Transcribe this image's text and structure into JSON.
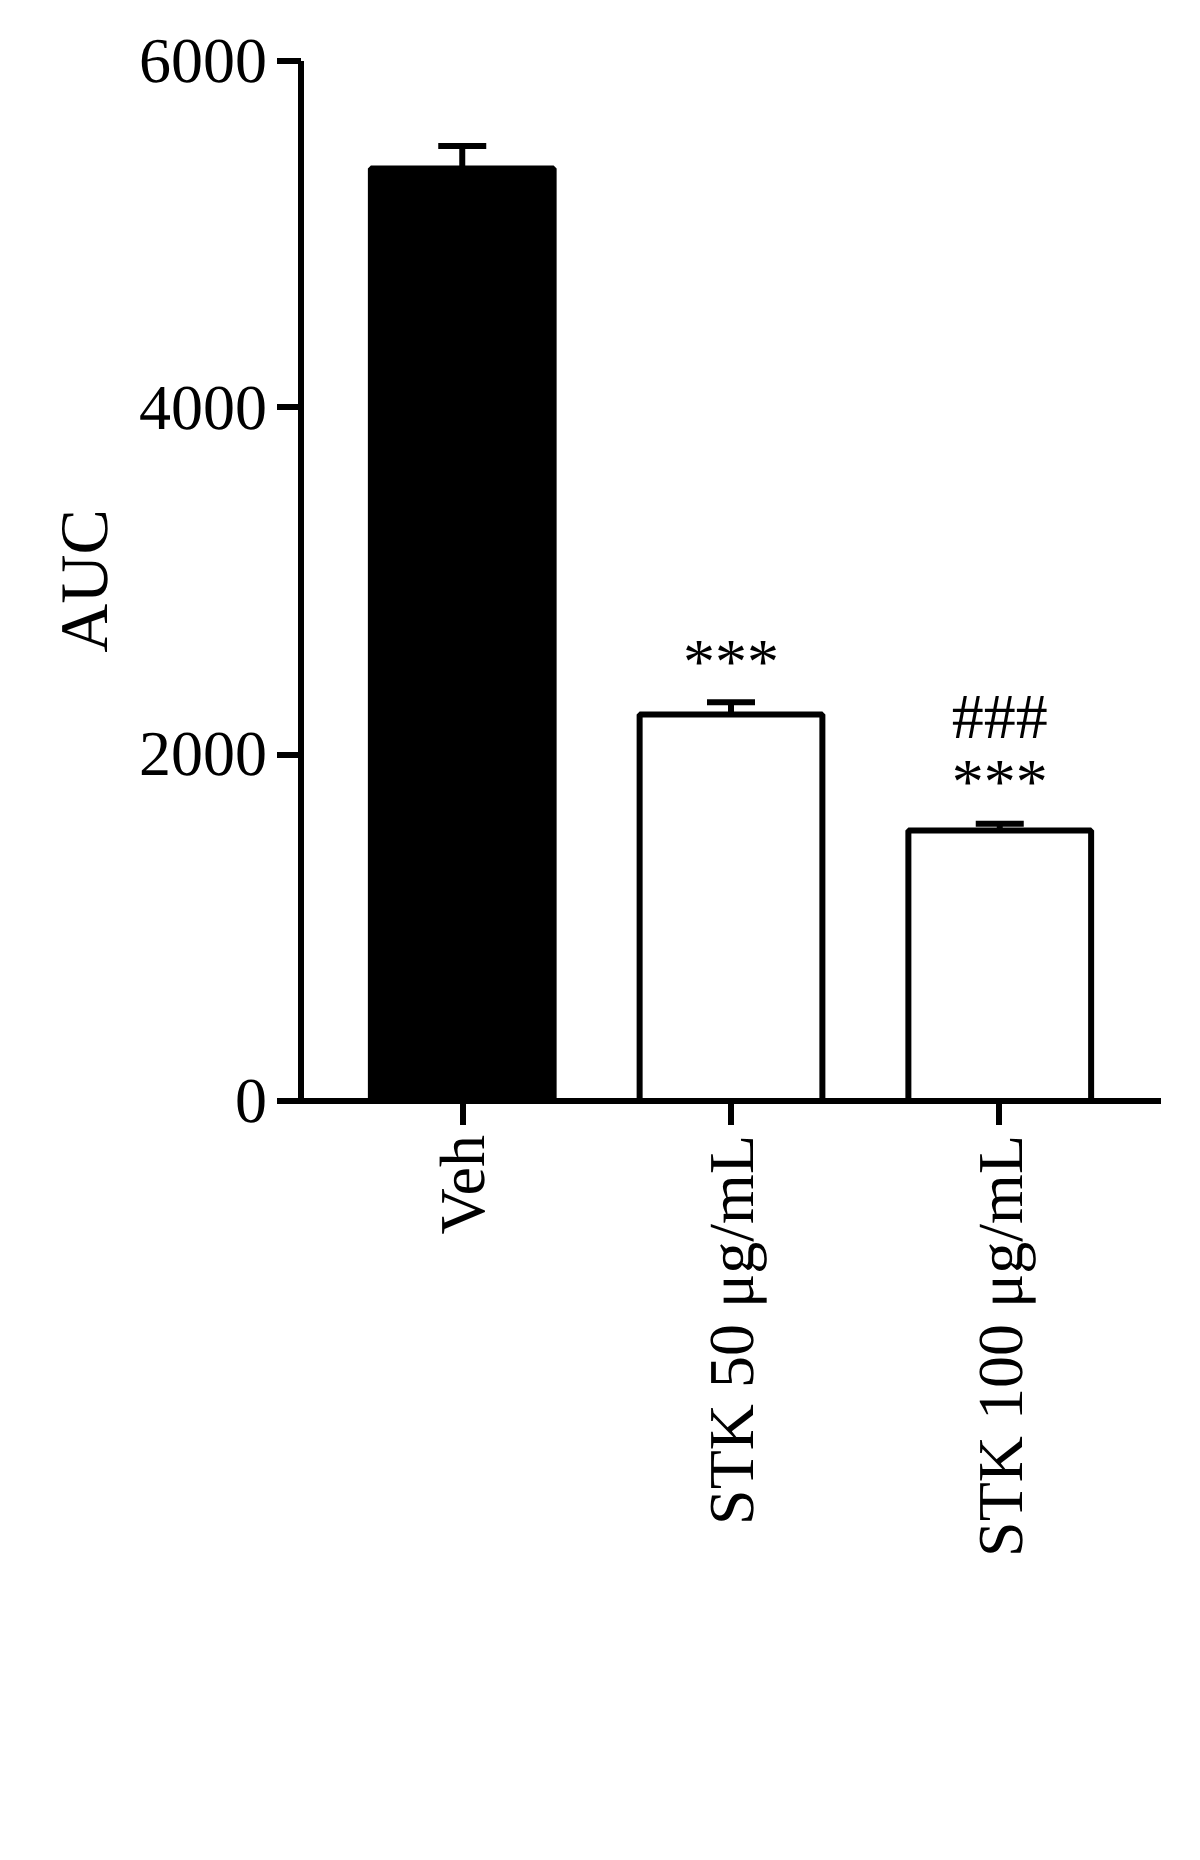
{
  "chart_data": {
    "type": "bar",
    "ylabel": "AUC",
    "categories": [
      "Veh",
      "STK 50 μg/mL",
      "STK 100 μg/mL"
    ],
    "values": [
      5380,
      2230,
      1560
    ],
    "errors": [
      130,
      70,
      40
    ],
    "colors": [
      "#000000",
      "#ffffff",
      "#ffffff"
    ],
    "ylim": [
      0,
      6000
    ],
    "yticks": [
      0,
      2000,
      4000,
      6000
    ],
    "grid": false,
    "annotations": [
      {
        "text": "***",
        "x": "STK 50 μg/mL",
        "y": 2330
      },
      {
        "text": "###\n***",
        "x": "STK 100 μg/mL",
        "y": 1640
      }
    ]
  }
}
